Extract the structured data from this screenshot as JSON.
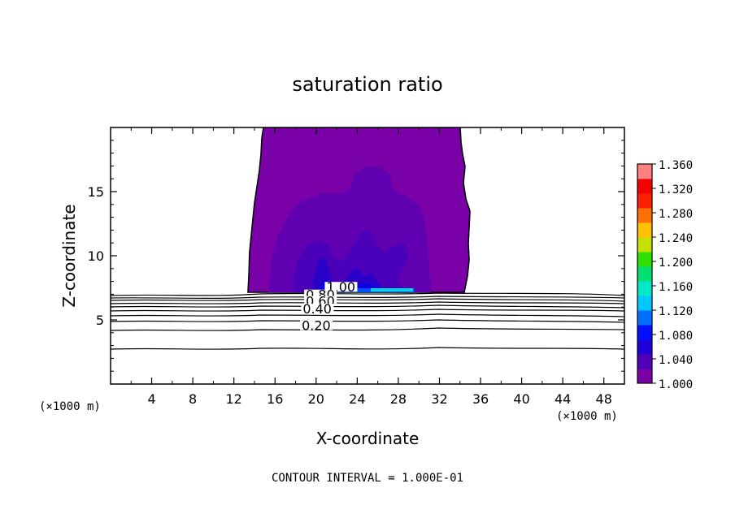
{
  "chart_data": {
    "type": "heatmap",
    "title": "saturation ratio",
    "xlabel": "X-coordinate",
    "ylabel": "Z-coordinate",
    "x_unit": "(×1000 m)",
    "z_unit": "(×1000 m)",
    "xlim": [
      0,
      50
    ],
    "ylim": [
      0,
      20
    ],
    "x_ticks": [
      "4",
      "8",
      "12",
      "16",
      "20",
      "24",
      "28",
      "32",
      "36",
      "40",
      "44",
      "48"
    ],
    "y_ticks": [
      "5",
      "10",
      "15"
    ],
    "footer": "CONTOUR INTERVAL = 1.000E-01",
    "colorbar": {
      "min": 1.0,
      "max": 1.36,
      "labels": [
        "1.360",
        "1.320",
        "1.280",
        "1.240",
        "1.200",
        "1.160",
        "1.120",
        "1.080",
        "1.040",
        "1.000"
      ],
      "colors": [
        "#7a00a8",
        "#4f00b8",
        "#1f00d8",
        "#0010ff",
        "#0070ff",
        "#00c8ff",
        "#00e8c8",
        "#00e070",
        "#30e000",
        "#c8e000",
        "#ffc000",
        "#ff7000",
        "#ff2000",
        "#f40000",
        "#ff8080"
      ]
    },
    "contour_labels": [
      {
        "text": "1.00",
        "x": 21.0,
        "z": 7.2
      },
      {
        "text": "0.80",
        "x": 19.0,
        "z": 6.6
      },
      {
        "text": "0.60",
        "x": 19.0,
        "z": 6.1
      },
      {
        "text": "0.40",
        "x": 18.7,
        "z": 5.5
      },
      {
        "text": "0.20",
        "x": 18.6,
        "z": 4.2
      }
    ],
    "cloud_region": {
      "x_range": [
        13.2,
        34.8
      ],
      "z_range": [
        7.2,
        20.0
      ],
      "base_value": 1.0,
      "max_value": 1.14,
      "max_location": {
        "x": 26.0,
        "z": 7.3
      }
    }
  }
}
